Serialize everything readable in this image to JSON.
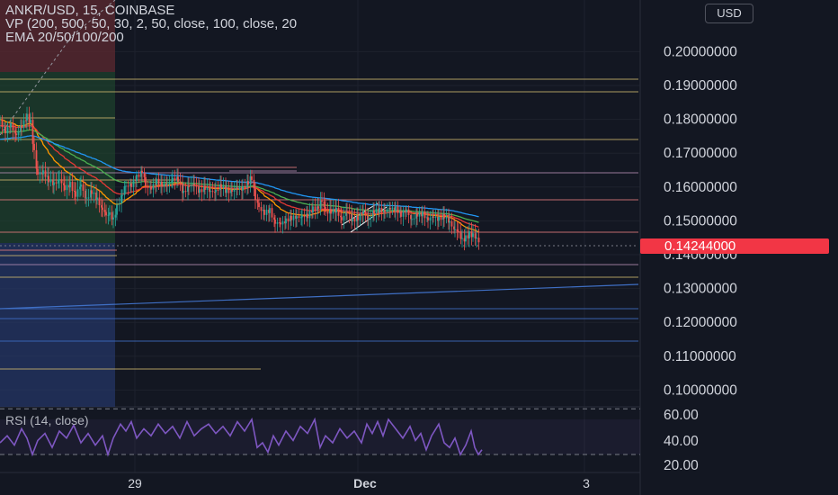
{
  "legend": {
    "line1": "ANKR/USD, 15, COINBASE",
    "line2": "VP (200, 500, 50, 30, 2, 50, close, 100, close, 20",
    "line3": "EMA 20/50/100/200"
  },
  "currency_button": "USD",
  "last_price": "0.14244000",
  "rsi_label": "RSI (14, close)",
  "colors": {
    "background": "#131722",
    "candle_up": "#26a69a",
    "candle_down": "#ef5350",
    "rsi_line": "#7e57c2",
    "price_tag": "#f23645"
  },
  "chart_data": {
    "type": "candlestick",
    "symbol": "ANKR/USD",
    "interval": "15",
    "exchange": "COINBASE",
    "price_axis_ticks": [
      "0.20000000",
      "0.19000000",
      "0.18000000",
      "0.17000000",
      "0.16000000",
      "0.15000000",
      "0.14000000",
      "0.13000000",
      "0.12000000",
      "0.11000000",
      "0.10000000"
    ],
    "time_axis_ticks": [
      "29",
      "Dec",
      "3"
    ],
    "rsi_axis_ticks": [
      "60.00",
      "40.00",
      "20.00"
    ],
    "last_price": 0.14244,
    "close_path": [
      [
        0,
        0.18
      ],
      [
        6,
        0.1765
      ],
      [
        12,
        0.178
      ],
      [
        18,
        0.176
      ],
      [
        24,
        0.1775
      ],
      [
        30,
        0.181
      ],
      [
        34,
        0.179
      ],
      [
        38,
        0.17
      ],
      [
        42,
        0.163
      ],
      [
        48,
        0.165
      ],
      [
        54,
        0.162
      ],
      [
        60,
        0.1605
      ],
      [
        66,
        0.163
      ],
      [
        72,
        0.159
      ],
      [
        78,
        0.161
      ],
      [
        84,
        0.158
      ],
      [
        90,
        0.16
      ],
      [
        96,
        0.157
      ],
      [
        102,
        0.1585
      ],
      [
        108,
        0.156
      ],
      [
        114,
        0.154
      ],
      [
        118,
        0.152
      ],
      [
        122,
        0.1525
      ],
      [
        126,
        0.1505
      ],
      [
        130,
        0.154
      ],
      [
        136,
        0.1585
      ],
      [
        140,
        0.161
      ],
      [
        146,
        0.16
      ],
      [
        152,
        0.163
      ],
      [
        158,
        0.165
      ],
      [
        162,
        0.161
      ],
      [
        168,
        0.159
      ],
      [
        174,
        0.162
      ],
      [
        180,
        0.161
      ],
      [
        186,
        0.16
      ],
      [
        192,
        0.163
      ],
      [
        198,
        0.162
      ],
      [
        204,
        0.158
      ],
      [
        210,
        0.161
      ],
      [
        216,
        0.16
      ],
      [
        222,
        0.159
      ],
      [
        228,
        0.16
      ],
      [
        234,
        0.158
      ],
      [
        240,
        0.1595
      ],
      [
        246,
        0.16
      ],
      [
        252,
        0.1585
      ],
      [
        258,
        0.1595
      ],
      [
        264,
        0.159
      ],
      [
        270,
        0.16
      ],
      [
        276,
        0.1615
      ],
      [
        280,
        0.163
      ],
      [
        284,
        0.157
      ],
      [
        288,
        0.1545
      ],
      [
        294,
        0.152
      ],
      [
        300,
        0.153
      ],
      [
        306,
        0.15
      ],
      [
        312,
        0.1485
      ],
      [
        318,
        0.1505
      ],
      [
        324,
        0.151
      ],
      [
        330,
        0.1505
      ],
      [
        336,
        0.152
      ],
      [
        342,
        0.151
      ],
      [
        348,
        0.1535
      ],
      [
        354,
        0.1545
      ],
      [
        358,
        0.1565
      ],
      [
        362,
        0.153
      ],
      [
        368,
        0.1525
      ],
      [
        374,
        0.153
      ],
      [
        380,
        0.151
      ],
      [
        386,
        0.152
      ],
      [
        392,
        0.1505
      ],
      [
        398,
        0.151
      ],
      [
        404,
        0.152
      ],
      [
        410,
        0.151
      ],
      [
        416,
        0.1525
      ],
      [
        422,
        0.153
      ],
      [
        428,
        0.1535
      ],
      [
        434,
        0.153
      ],
      [
        440,
        0.154
      ],
      [
        446,
        0.152
      ],
      [
        452,
        0.1525
      ],
      [
        458,
        0.151
      ],
      [
        464,
        0.1515
      ],
      [
        470,
        0.152
      ],
      [
        476,
        0.151
      ],
      [
        482,
        0.1505
      ],
      [
        488,
        0.151
      ],
      [
        494,
        0.1515
      ],
      [
        500,
        0.149
      ],
      [
        506,
        0.148
      ],
      [
        510,
        0.147
      ],
      [
        514,
        0.1445
      ],
      [
        518,
        0.145
      ],
      [
        522,
        0.146
      ],
      [
        526,
        0.1455
      ],
      [
        530,
        0.1445
      ],
      [
        534,
        0.1425
      ]
    ],
    "rsi_path": [
      [
        0,
        40
      ],
      [
        8,
        46
      ],
      [
        16,
        38
      ],
      [
        24,
        52
      ],
      [
        30,
        44
      ],
      [
        36,
        30
      ],
      [
        42,
        42
      ],
      [
        50,
        48
      ],
      [
        58,
        36
      ],
      [
        66,
        50
      ],
      [
        74,
        44
      ],
      [
        82,
        55
      ],
      [
        90,
        40
      ],
      [
        98,
        48
      ],
      [
        106,
        38
      ],
      [
        114,
        46
      ],
      [
        120,
        30
      ],
      [
        126,
        44
      ],
      [
        134,
        56
      ],
      [
        140,
        50
      ],
      [
        146,
        58
      ],
      [
        152,
        44
      ],
      [
        160,
        52
      ],
      [
        168,
        46
      ],
      [
        176,
        56
      ],
      [
        184,
        48
      ],
      [
        192,
        54
      ],
      [
        200,
        44
      ],
      [
        208,
        58
      ],
      [
        216,
        46
      ],
      [
        224,
        52
      ],
      [
        232,
        56
      ],
      [
        240,
        48
      ],
      [
        248,
        54
      ],
      [
        256,
        46
      ],
      [
        264,
        58
      ],
      [
        272,
        50
      ],
      [
        280,
        60
      ],
      [
        286,
        36
      ],
      [
        292,
        40
      ],
      [
        298,
        32
      ],
      [
        304,
        46
      ],
      [
        310,
        38
      ],
      [
        318,
        50
      ],
      [
        326,
        42
      ],
      [
        334,
        54
      ],
      [
        342,
        48
      ],
      [
        350,
        60
      ],
      [
        356,
        36
      ],
      [
        362,
        46
      ],
      [
        370,
        40
      ],
      [
        378,
        52
      ],
      [
        386,
        44
      ],
      [
        394,
        50
      ],
      [
        402,
        40
      ],
      [
        408,
        56
      ],
      [
        414,
        48
      ],
      [
        420,
        58
      ],
      [
        426,
        46
      ],
      [
        432,
        60
      ],
      [
        440,
        52
      ],
      [
        448,
        44
      ],
      [
        456,
        54
      ],
      [
        462,
        42
      ],
      [
        468,
        48
      ],
      [
        474,
        34
      ],
      [
        480,
        46
      ],
      [
        488,
        56
      ],
      [
        494,
        40
      ],
      [
        500,
        36
      ],
      [
        506,
        44
      ],
      [
        512,
        30
      ],
      [
        518,
        38
      ],
      [
        524,
        50
      ],
      [
        528,
        36
      ],
      [
        532,
        30
      ],
      [
        536,
        34
      ]
    ]
  }
}
